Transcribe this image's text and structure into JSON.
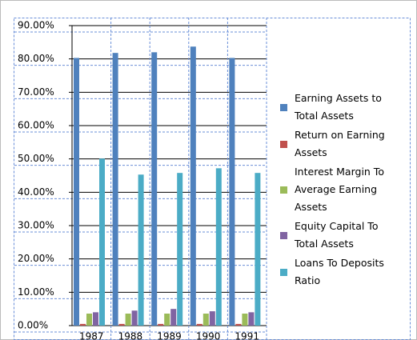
{
  "chart_data": {
    "type": "bar",
    "categories": [
      "1987",
      "1988",
      "1989",
      "1990",
      "1991"
    ],
    "series": [
      {
        "name": "Earning Assets to Total Assets",
        "color": "#4f81bd",
        "values": [
          80.3,
          81.8,
          82.0,
          83.7,
          80.3
        ]
      },
      {
        "name": "Return on Earning Assets",
        "color": "#c0504d",
        "values": [
          0.5,
          0.5,
          0.5,
          0.5,
          0.5
        ]
      },
      {
        "name": "Interest Margin To Average Earning Assets",
        "color": "#9bbb59",
        "values": [
          3.6,
          3.6,
          3.6,
          3.6,
          3.6
        ]
      },
      {
        "name": "Equity Capital To Total Assets",
        "color": "#8064a2",
        "values": [
          4.0,
          4.5,
          5.0,
          4.3,
          4.0
        ]
      },
      {
        "name": "Loans To Deposits Ratio",
        "color": "#4bacc6",
        "values": [
          50.1,
          45.3,
          45.8,
          47.2,
          45.8
        ]
      }
    ],
    "ylim": [
      0,
      90
    ],
    "yticks": [
      {
        "value": 0,
        "label": "0.00%"
      },
      {
        "value": 10,
        "label": "10.00%"
      },
      {
        "value": 20,
        "label": "20.00%"
      },
      {
        "value": 30,
        "label": "30.00%"
      },
      {
        "value": 40,
        "label": "40.00%"
      },
      {
        "value": 50,
        "label": "50.00%"
      },
      {
        "value": 60,
        "label": "60.00%"
      },
      {
        "value": 70,
        "label": "70.00%"
      },
      {
        "value": 80,
        "label": "80.00%"
      },
      {
        "value": 90,
        "label": "90.00%"
      }
    ],
    "grid": true,
    "legend": "right"
  }
}
